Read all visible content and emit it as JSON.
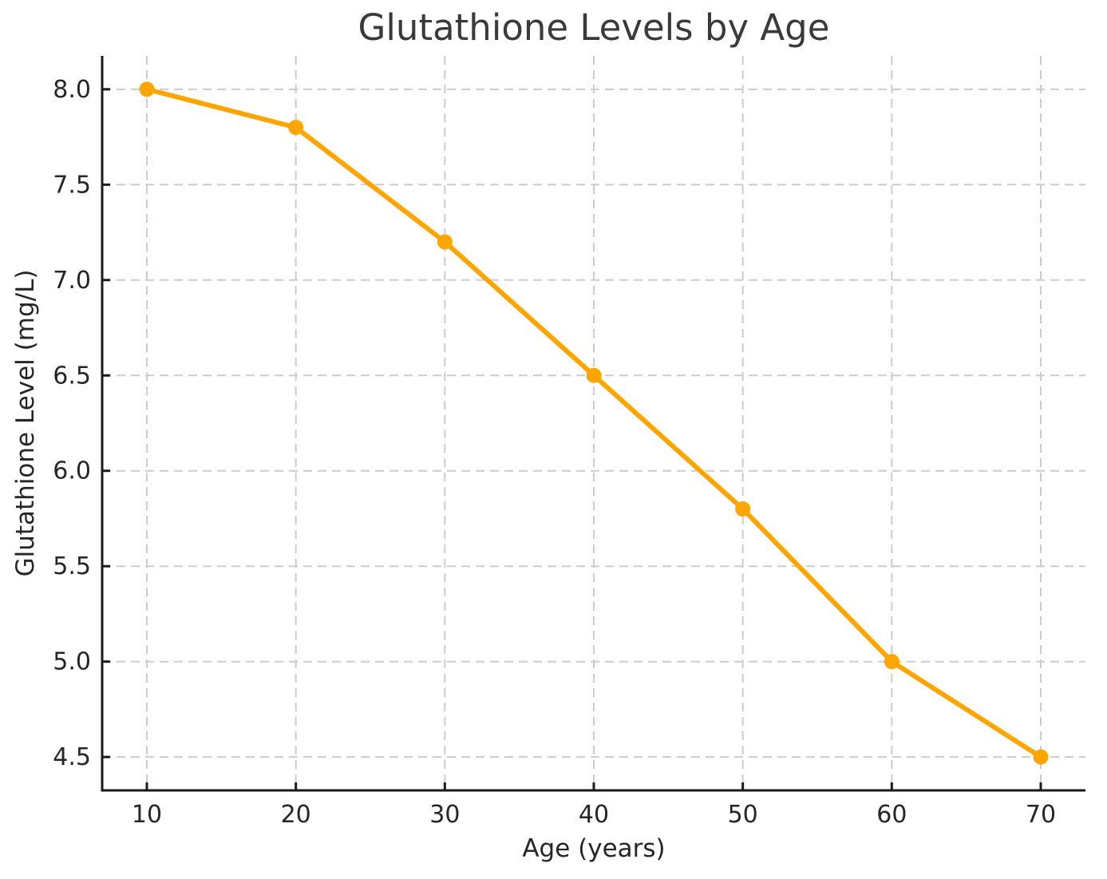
{
  "chart_data": {
    "type": "line",
    "title": "Glutathione Levels by Age",
    "xlabel": "Age (years)",
    "ylabel": "Glutathione Level (mg/L)",
    "x": [
      10,
      20,
      30,
      40,
      50,
      60,
      70
    ],
    "series": [
      {
        "name": "Glutathione Level",
        "values": [
          8.0,
          7.8,
          7.2,
          6.5,
          5.8,
          5.0,
          4.5
        ]
      }
    ],
    "x_ticks": [
      "10",
      "20",
      "30",
      "40",
      "50",
      "60",
      "70"
    ],
    "x_tick_values": [
      10,
      20,
      30,
      40,
      50,
      60,
      70
    ],
    "y_ticks": [
      "4.5",
      "5.0",
      "5.5",
      "6.0",
      "6.5",
      "7.0",
      "7.5",
      "8.0"
    ],
    "y_tick_values": [
      4.5,
      5.0,
      5.5,
      6.0,
      6.5,
      7.0,
      7.5,
      8.0
    ],
    "xlim": [
      7,
      73
    ],
    "ylim": [
      4.325,
      8.175
    ],
    "grid": true,
    "legend_position": "none",
    "colors": {
      "line": "#FFA500",
      "marker": "#FFA500",
      "grid": "#cccccc",
      "spine": "#1a1a1a",
      "tick_label": "#262626",
      "axis_label": "#262626",
      "title": "#3a3a3a",
      "background": "#ffffff"
    }
  }
}
